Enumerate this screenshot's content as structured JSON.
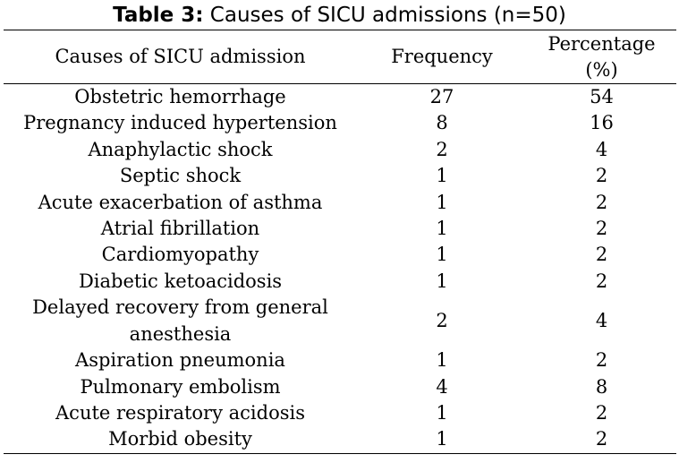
{
  "caption": {
    "label": "Table 3:",
    "text": " Causes of SICU admissions (n=50)"
  },
  "headers": {
    "cause": "Causes of SICU admission",
    "frequency": "Frequency",
    "percentage": "Percentage (%)"
  },
  "rows": [
    {
      "cause": "Obstetric hemorrhage",
      "frequency": "27",
      "percentage": "54"
    },
    {
      "cause": "Pregnancy induced hypertension",
      "frequency": "8",
      "percentage": "16"
    },
    {
      "cause": "Anaphylactic shock",
      "frequency": "2",
      "percentage": "4"
    },
    {
      "cause": "Septic shock",
      "frequency": "1",
      "percentage": "2"
    },
    {
      "cause": "Acute exacerbation of asthma",
      "frequency": "1",
      "percentage": "2"
    },
    {
      "cause": "Atrial fibrillation",
      "frequency": "1",
      "percentage": "2"
    },
    {
      "cause": "Cardiomyopathy",
      "frequency": "1",
      "percentage": "2"
    },
    {
      "cause": "Diabetic ketoacidosis",
      "frequency": "1",
      "percentage": "2"
    },
    {
      "cause": "Delayed recovery from general anesthesia",
      "frequency": "2",
      "percentage": "4"
    },
    {
      "cause": "Aspiration pneumonia",
      "frequency": "1",
      "percentage": "2"
    },
    {
      "cause": "Pulmonary embolism",
      "frequency": "4",
      "percentage": "8"
    },
    {
      "cause": "Acute respiratory acidosis",
      "frequency": "1",
      "percentage": "2"
    },
    {
      "cause": "Morbid obesity",
      "frequency": "1",
      "percentage": "2"
    }
  ]
}
